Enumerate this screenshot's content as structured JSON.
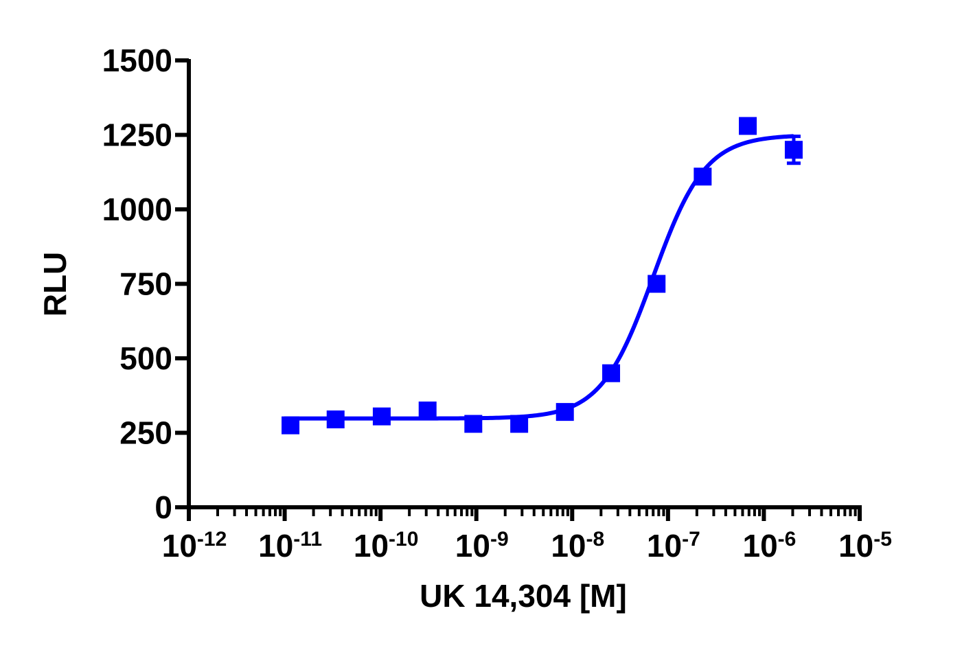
{
  "chart_data": {
    "type": "scatter",
    "xlabel": "UK 14,304 [M]",
    "ylabel": "RLU",
    "x_scale": "log",
    "xlim": [
      1e-12,
      1e-05
    ],
    "ylim": [
      0,
      1500
    ],
    "y_ticks": [
      0,
      250,
      500,
      750,
      1000,
      1250,
      1500
    ],
    "y_tick_labels": [
      "0",
      "250",
      "500",
      "750",
      "1000",
      "1250",
      "1500"
    ],
    "x_ticks": [
      1e-12,
      1e-11,
      1e-10,
      1e-09,
      1e-08,
      1e-07,
      1e-06,
      1e-05
    ],
    "x_tick_labels": [
      {
        "base": "10",
        "exp": "-12"
      },
      {
        "base": "10",
        "exp": "-11"
      },
      {
        "base": "10",
        "exp": "-10"
      },
      {
        "base": "10",
        "exp": "-9"
      },
      {
        "base": "10",
        "exp": "-8"
      },
      {
        "base": "10",
        "exp": "-7"
      },
      {
        "base": "10",
        "exp": "-6"
      },
      {
        "base": "10",
        "exp": "-5"
      }
    ],
    "grid": false,
    "series": [
      {
        "color": "#0000ff",
        "marker": "square",
        "x": [
          1.15e-11,
          3.4e-11,
          1.03e-10,
          3.1e-10,
          9.3e-10,
          2.8e-09,
          8.4e-09,
          2.55e-08,
          7.6e-08,
          2.3e-07,
          6.8e-07,
          2.05e-06
        ],
        "y": [
          275,
          295,
          305,
          325,
          280,
          280,
          320,
          450,
          750,
          1110,
          1280,
          1200
        ],
        "error": [
          0,
          0,
          0,
          0,
          0,
          0,
          0,
          0,
          0,
          0,
          0,
          45
        ]
      }
    ],
    "fit_curve": {
      "type": "4PL",
      "color": "#0000ff",
      "bottom": 298,
      "top": 1250,
      "ec50": 7e-08,
      "hill": 1.6,
      "x_range": [
        1e-11,
        2e-06
      ]
    }
  }
}
